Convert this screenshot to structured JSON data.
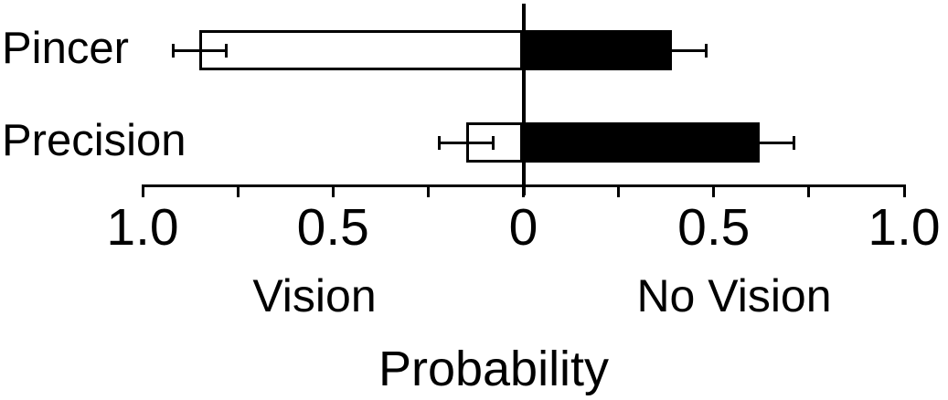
{
  "chart_data": {
    "type": "bar",
    "orientation": "horizontal_diverging",
    "title": "",
    "xlabel": "Probability",
    "categories": [
      "Pincer",
      "Precision"
    ],
    "series": [
      {
        "name": "Vision",
        "side": "left",
        "fill": "#ffffff",
        "values": [
          0.85,
          0.15
        ],
        "errors": [
          0.07,
          0.07
        ]
      },
      {
        "name": "No Vision",
        "side": "right",
        "fill": "#000000",
        "values": [
          0.39,
          0.62
        ],
        "errors": [
          0.09,
          0.09
        ]
      }
    ],
    "axis": {
      "xlim_left": 1.0,
      "xlim_right": 1.0,
      "ticks": [
        {
          "v": -1.0,
          "label": "1.0"
        },
        {
          "v": -0.75,
          "label": ""
        },
        {
          "v": -0.5,
          "label": "0.5"
        },
        {
          "v": -0.25,
          "label": ""
        },
        {
          "v": 0,
          "label": "0"
        },
        {
          "v": 0.25,
          "label": ""
        },
        {
          "v": 0.5,
          "label": "0.5"
        },
        {
          "v": 0.75,
          "label": ""
        },
        {
          "v": 1.0,
          "label": "1.0"
        }
      ],
      "grid": false,
      "error_bars": true
    },
    "colors": {
      "foreground": "#000000",
      "background": "#ffffff"
    }
  }
}
